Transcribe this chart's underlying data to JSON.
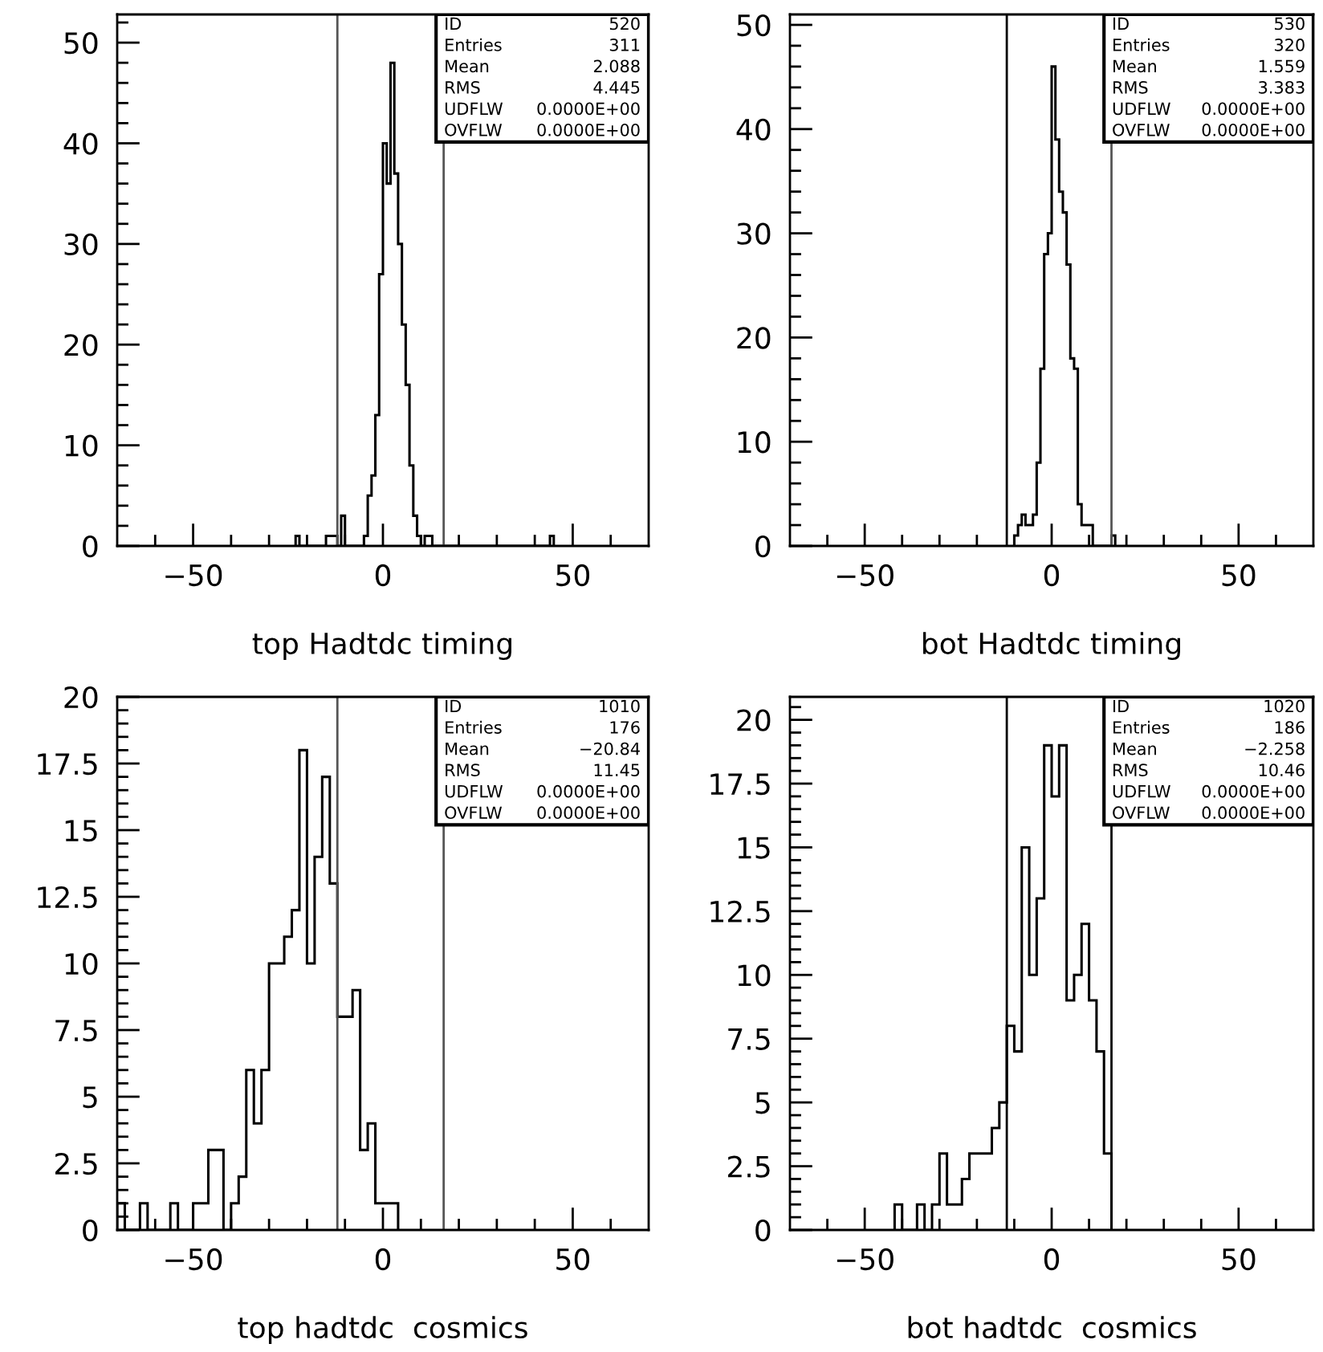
{
  "chart_data": [
    {
      "type": "histogram",
      "xlabel": "top Hadtdc timing",
      "color": "#000000",
      "bins": [
        -23,
        -22,
        -21,
        -20,
        -19,
        -18,
        -17,
        -16,
        -15,
        -14,
        -13,
        -12,
        -11,
        -10,
        -9,
        -8,
        -7,
        -6,
        -5,
        -4,
        -3,
        -2,
        -1,
        0,
        1,
        2,
        3,
        4,
        5,
        6,
        7,
        8,
        9,
        10,
        11,
        12,
        13,
        14,
        15,
        16,
        17,
        18,
        19,
        20,
        21,
        22,
        23,
        24,
        25,
        26,
        27,
        28,
        29,
        30,
        31,
        32,
        33,
        34,
        35,
        36,
        37,
        38,
        39,
        40,
        41,
        42,
        43,
        44,
        45
      ],
      "values": [
        1,
        0,
        0,
        0,
        0,
        0,
        0,
        0,
        1,
        1,
        1,
        0,
        3,
        0,
        0,
        0,
        0,
        0,
        1,
        5,
        7,
        13,
        27,
        40,
        36,
        48,
        37,
        30,
        22,
        16,
        8,
        3,
        1,
        0,
        1,
        1,
        0,
        0,
        0,
        0,
        0,
        0,
        0,
        0,
        0,
        0,
        0,
        0,
        0,
        0,
        0,
        0,
        0,
        0,
        0,
        0,
        0,
        0,
        0,
        0,
        0,
        0,
        0,
        0,
        0,
        0,
        0,
        1
      ],
      "xlim": [
        -70,
        70
      ],
      "ylim": [
        0,
        52.8
      ],
      "xticks": [
        {
          "value": -60,
          "label": null
        },
        {
          "value": -50,
          "label": "−50"
        },
        {
          "value": -40,
          "label": null
        },
        {
          "value": -30,
          "label": null
        },
        {
          "value": -20,
          "label": null
        },
        {
          "value": -10,
          "label": null
        },
        0,
        {
          "value": 10,
          "label": null
        },
        {
          "value": 20,
          "label": null
        },
        {
          "value": 30,
          "label": null
        },
        {
          "value": 40,
          "label": null
        },
        50,
        {
          "value": 60,
          "label": null
        }
      ],
      "yticks": [
        0,
        {
          "value": 2,
          "label": null
        },
        {
          "value": 4,
          "label": null
        },
        {
          "value": 6,
          "label": null
        },
        {
          "value": 8,
          "label": null
        },
        10,
        {
          "value": 12,
          "label": null
        },
        {
          "value": 14,
          "label": null
        },
        {
          "value": 16,
          "label": null
        },
        {
          "value": 18,
          "label": null
        },
        20,
        {
          "value": 22,
          "label": null
        },
        {
          "value": 24,
          "label": null
        },
        {
          "value": 26,
          "label": null
        },
        {
          "value": 28,
          "label": null
        },
        30,
        {
          "value": 32,
          "label": null
        },
        {
          "value": 34,
          "label": null
        },
        {
          "value": 36,
          "label": null
        },
        {
          "value": 38,
          "label": null
        },
        40,
        {
          "value": 42,
          "label": null
        },
        {
          "value": 44,
          "label": null
        },
        {
          "value": 46,
          "label": null
        },
        {
          "value": 48,
          "label": null
        },
        50,
        {
          "value": 52,
          "label": null
        }
      ],
      "ref_lines": [
        {
          "axis": "x",
          "value": -12,
          "color": "#555555"
        },
        {
          "axis": "x",
          "value": 16,
          "color": "#555555"
        }
      ],
      "annotations": [
        "ID",
        "520",
        "Entries",
        "311",
        "Mean",
        "2.088",
        "RMS",
        "4.445",
        "UDFLW",
        "0.0000E+00",
        "OVFLW",
        "0.0000E+00"
      ]
    },
    {
      "type": "histogram",
      "xlabel": "bot Hadtdc timing",
      "color": "#000000",
      "bins": [
        -10,
        -9,
        -8,
        -7,
        -6,
        -5,
        -4,
        -3,
        -2,
        -1,
        0,
        1,
        2,
        3,
        4,
        5,
        6,
        7,
        8,
        9,
        10,
        11,
        12,
        13,
        14,
        15,
        16,
        17
      ],
      "values": [
        1,
        2,
        3,
        2,
        2,
        3,
        8,
        17,
        28,
        30,
        46,
        39,
        34,
        32,
        27,
        18,
        17,
        4,
        2,
        2,
        2,
        0,
        0,
        0,
        0,
        0,
        1
      ],
      "xlim": [
        -70,
        70
      ],
      "ylim": [
        0,
        51
      ],
      "xticks": [
        {
          "value": -60,
          "label": null
        },
        {
          "value": -50,
          "label": "−50"
        },
        {
          "value": -40,
          "label": null
        },
        {
          "value": -30,
          "label": null
        },
        {
          "value": -20,
          "label": null
        },
        {
          "value": -10,
          "label": null
        },
        0,
        {
          "value": 10,
          "label": null
        },
        {
          "value": 20,
          "label": null
        },
        {
          "value": 30,
          "label": null
        },
        {
          "value": 40,
          "label": null
        },
        50,
        {
          "value": 60,
          "label": null
        }
      ],
      "yticks": [
        0,
        {
          "value": 2,
          "label": null
        },
        {
          "value": 4,
          "label": null
        },
        {
          "value": 6,
          "label": null
        },
        {
          "value": 8,
          "label": null
        },
        10,
        {
          "value": 12,
          "label": null
        },
        {
          "value": 14,
          "label": null
        },
        {
          "value": 16,
          "label": null
        },
        {
          "value": 18,
          "label": null
        },
        20,
        {
          "value": 22,
          "label": null
        },
        {
          "value": 24,
          "label": null
        },
        {
          "value": 26,
          "label": null
        },
        {
          "value": 28,
          "label": null
        },
        30,
        {
          "value": 32,
          "label": null
        },
        {
          "value": 34,
          "label": null
        },
        {
          "value": 36,
          "label": null
        },
        {
          "value": 38,
          "label": null
        },
        40,
        {
          "value": 42,
          "label": null
        },
        {
          "value": 44,
          "label": null
        },
        {
          "value": 46,
          "label": null
        },
        {
          "value": 48,
          "label": null
        },
        50
      ],
      "ref_lines": [
        {
          "axis": "x",
          "value": -12,
          "color": "#000000"
        },
        {
          "axis": "x",
          "value": 16,
          "color": "#555555"
        }
      ],
      "annotations": [
        "ID",
        "530",
        "Entries",
        "320",
        "Mean",
        "1.559",
        "RMS",
        "3.383",
        "UDFLW",
        "0.0000E+00",
        "OVFLW",
        "0.0000E+00"
      ]
    },
    {
      "type": "histogram",
      "xlabel": "top hadtdc  cosmics",
      "color": "#000000",
      "bins": [
        -70,
        -68,
        -66,
        -64,
        -62,
        -60,
        -58,
        -56,
        -54,
        -52,
        -50,
        -48,
        -46,
        -44,
        -42,
        -40,
        -38,
        -36,
        -34,
        -32,
        -30,
        -28,
        -26,
        -24,
        -22,
        -20,
        -18,
        -16,
        -14,
        -12,
        -10,
        -8,
        -6,
        -4,
        -2,
        0,
        2,
        4
      ],
      "values": [
        1,
        0,
        0,
        1,
        0,
        0,
        0,
        1,
        0,
        0,
        1,
        1,
        3,
        3,
        0,
        1,
        2,
        6,
        4,
        6,
        10,
        10,
        11,
        12,
        18,
        10,
        14,
        17,
        13,
        8,
        8,
        9,
        3,
        4,
        1,
        1,
        1
      ],
      "xlim": [
        -70,
        70
      ],
      "ylim": [
        0,
        20
      ],
      "xticks": [
        {
          "value": -60,
          "label": null
        },
        {
          "value": -50,
          "label": "−50"
        },
        {
          "value": -40,
          "label": null
        },
        {
          "value": -30,
          "label": null
        },
        {
          "value": -20,
          "label": null
        },
        {
          "value": -10,
          "label": null
        },
        0,
        {
          "value": 10,
          "label": null
        },
        {
          "value": 20,
          "label": null
        },
        {
          "value": 30,
          "label": null
        },
        {
          "value": 40,
          "label": null
        },
        50,
        {
          "value": 60,
          "label": null
        }
      ],
      "yticks": [
        0,
        {
          "value": 0.5,
          "label": null
        },
        {
          "value": 1,
          "label": null
        },
        {
          "value": 1.5,
          "label": null
        },
        {
          "value": 2,
          "label": null
        },
        2.5,
        {
          "value": 3,
          "label": null
        },
        {
          "value": 3.5,
          "label": null
        },
        {
          "value": 4,
          "label": null
        },
        {
          "value": 4.5,
          "label": null
        },
        5,
        {
          "value": 5.5,
          "label": null
        },
        {
          "value": 6,
          "label": null
        },
        {
          "value": 6.5,
          "label": null
        },
        {
          "value": 7,
          "label": null
        },
        7.5,
        {
          "value": 8,
          "label": null
        },
        {
          "value": 8.5,
          "label": null
        },
        {
          "value": 9,
          "label": null
        },
        {
          "value": 9.5,
          "label": null
        },
        10,
        {
          "value": 10.5,
          "label": null
        },
        {
          "value": 11,
          "label": null
        },
        {
          "value": 11.5,
          "label": null
        },
        {
          "value": 12,
          "label": null
        },
        12.5,
        {
          "value": 13,
          "label": null
        },
        {
          "value": 13.5,
          "label": null
        },
        {
          "value": 14,
          "label": null
        },
        {
          "value": 14.5,
          "label": null
        },
        15,
        {
          "value": 15.5,
          "label": null
        },
        {
          "value": 16,
          "label": null
        },
        {
          "value": 16.5,
          "label": null
        },
        {
          "value": 17,
          "label": null
        },
        17.5,
        {
          "value": 18,
          "label": null
        },
        {
          "value": 18.5,
          "label": null
        },
        {
          "value": 19,
          "label": null
        },
        {
          "value": 19.5,
          "label": null
        },
        20
      ],
      "ref_lines": [
        {
          "axis": "x",
          "value": -12,
          "color": "#555555"
        },
        {
          "axis": "x",
          "value": 16,
          "color": "#555555"
        }
      ],
      "annotations": [
        "ID",
        "1010",
        "Entries",
        "176",
        "Mean",
        "−20.84",
        "RMS",
        "11.45",
        "UDFLW",
        "0.0000E+00",
        "OVFLW",
        "0.0000E+00"
      ]
    },
    {
      "type": "histogram",
      "xlabel": "bot hadtdc  cosmics",
      "color": "#000000",
      "bins": [
        -42,
        -40,
        -38,
        -36,
        -34,
        -32,
        -30,
        -28,
        -26,
        -24,
        -22,
        -20,
        -18,
        -16,
        -14,
        -12,
        -10,
        -8,
        -6,
        -4,
        -2,
        0,
        2,
        4,
        6,
        8,
        10,
        12,
        14,
        16
      ],
      "values": [
        1,
        0,
        0,
        1,
        0,
        1,
        3,
        1,
        1,
        2,
        3,
        3,
        3,
        4,
        5,
        8,
        7,
        15,
        10,
        13,
        19,
        17,
        19,
        9,
        10,
        12,
        9,
        7,
        3
      ],
      "xlim": [
        -70,
        70
      ],
      "ylim": [
        0,
        20.9
      ],
      "xticks": [
        {
          "value": -60,
          "label": null
        },
        {
          "value": -50,
          "label": "−50"
        },
        {
          "value": -40,
          "label": null
        },
        {
          "value": -30,
          "label": null
        },
        {
          "value": -20,
          "label": null
        },
        {
          "value": -10,
          "label": null
        },
        0,
        {
          "value": 10,
          "label": null
        },
        {
          "value": 20,
          "label": null
        },
        {
          "value": 30,
          "label": null
        },
        {
          "value": 40,
          "label": null
        },
        50,
        {
          "value": 60,
          "label": null
        }
      ],
      "yticks": [
        0,
        {
          "value": 0.5,
          "label": null
        },
        {
          "value": 1,
          "label": null
        },
        {
          "value": 1.5,
          "label": null
        },
        {
          "value": 2,
          "label": null
        },
        2.5,
        {
          "value": 3,
          "label": null
        },
        {
          "value": 3.5,
          "label": null
        },
        {
          "value": 4,
          "label": null
        },
        {
          "value": 4.5,
          "label": null
        },
        5,
        {
          "value": 5.5,
          "label": null
        },
        {
          "value": 6,
          "label": null
        },
        {
          "value": 6.5,
          "label": null
        },
        {
          "value": 7,
          "label": null
        },
        7.5,
        {
          "value": 8,
          "label": null
        },
        {
          "value": 8.5,
          "label": null
        },
        {
          "value": 9,
          "label": null
        },
        {
          "value": 9.5,
          "label": null
        },
        10,
        {
          "value": 10.5,
          "label": null
        },
        {
          "value": 11,
          "label": null
        },
        {
          "value": 11.5,
          "label": null
        },
        {
          "value": 12,
          "label": null
        },
        12.5,
        {
          "value": 13,
          "label": null
        },
        {
          "value": 13.5,
          "label": null
        },
        {
          "value": 14,
          "label": null
        },
        {
          "value": 14.5,
          "label": null
        },
        15,
        {
          "value": 15.5,
          "label": null
        },
        {
          "value": 16,
          "label": null
        },
        {
          "value": 16.5,
          "label": null
        },
        {
          "value": 17,
          "label": null
        },
        17.5,
        {
          "value": 18,
          "label": null
        },
        {
          "value": 18.5,
          "label": null
        },
        {
          "value": 19,
          "label": null
        },
        {
          "value": 19.5,
          "label": null
        },
        20,
        {
          "value": 20.5,
          "label": null
        }
      ],
      "ref_lines": [
        {
          "axis": "x",
          "value": -12,
          "color": "#000000"
        },
        {
          "axis": "x",
          "value": 16,
          "color": "#000000"
        }
      ],
      "annotations": [
        "ID",
        "1020",
        "Entries",
        "186",
        "Mean",
        "−2.258",
        "RMS",
        "10.46",
        "UDFLW",
        "0.0000E+00",
        "OVFLW",
        "0.0000E+00"
      ]
    }
  ]
}
